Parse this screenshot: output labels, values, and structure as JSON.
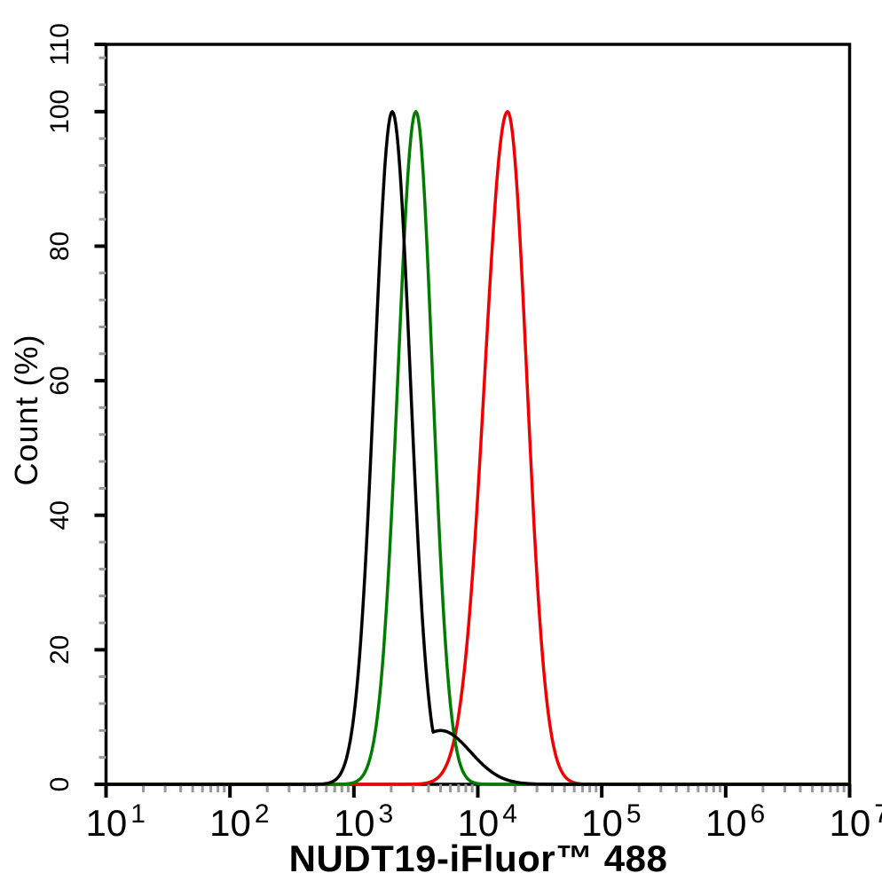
{
  "chart_data": {
    "type": "line",
    "subtype": "flow-cytometry-overlay-histogram",
    "title": "",
    "xlabel": "NUDT19-iFluor™ 488",
    "ylabel": "Count (%)",
    "x_scale": "log10",
    "x_range": [
      10,
      10000000
    ],
    "x_tick_base": "10",
    "x_tick_exponents": [
      1,
      2,
      3,
      4,
      5,
      6,
      7
    ],
    "x_minor_tick_mantissas": [
      2,
      3,
      4,
      5,
      6,
      7,
      8,
      9
    ],
    "ylim": [
      0,
      110
    ],
    "y_major_ticks": [
      0,
      20,
      40,
      60,
      80,
      100,
      110
    ],
    "y_minor_tick_step": 4,
    "grid": false,
    "legend": "none",
    "background": "#ffffff",
    "axis_color": "#000000",
    "minor_tick_color": "#9a9a9a",
    "series": [
      {
        "name": "red-curve",
        "color": "#f10000",
        "peak_percent": 100,
        "peak_x_value": 17400,
        "log10_mean": 4.24,
        "log10_sigma_left": 0.185,
        "log10_sigma_right": 0.155
      },
      {
        "name": "green-curve",
        "color": "#007d00",
        "peak_percent": 100,
        "peak_x_value": 3160,
        "log10_mean": 3.5,
        "log10_sigma_left": 0.145,
        "log10_sigma_right": 0.135
      },
      {
        "name": "black-curve",
        "color": "#000000",
        "peak_percent": 100,
        "peak_x_value": 2040,
        "log10_mean": 3.31,
        "log10_sigma_left": 0.145,
        "log10_sigma_right": 0.145,
        "right_tail": {
          "amplitude_percent": 8,
          "log10_mean": 3.7,
          "log10_sigma": 0.24
        }
      }
    ]
  }
}
